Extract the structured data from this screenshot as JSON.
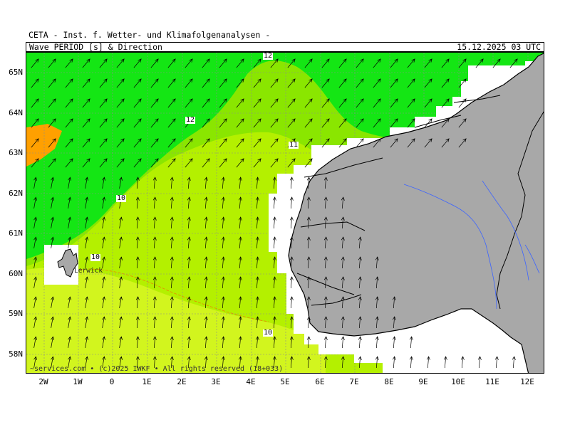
{
  "header": {
    "agency": "CETA - Inst. f. Wetter- und Klimafolgenanalysen -",
    "product": "Wave_PERIOD_[s]_&_Direction",
    "valid_time": "15.12.2025 03 UTC"
  },
  "axes": {
    "lat_labels": [
      "65N",
      "64N",
      "63N",
      "62N",
      "61N",
      "60N",
      "59N",
      "58N"
    ],
    "lon_labels": [
      "2W",
      "1W",
      "0",
      "1E",
      "2E",
      "3E",
      "4E",
      "5E",
      "6E",
      "7E",
      "8E",
      "9E",
      "10E",
      "11E",
      "12E"
    ]
  },
  "contour_labels": [
    "12",
    "12",
    "11",
    "10",
    "10",
    "10"
  ],
  "places": {
    "lerwick": "Lerwick"
  },
  "footer": {
    "copyright": "~services.com • (c)2025 IWKF • All rights reserved (18+033)"
  },
  "colors": {
    "period_12_plus": "#14e614",
    "period_11": "#8ae600",
    "period_10": "#b4f000",
    "period_9": "#d2f51e",
    "period_7": "#ffa000",
    "period_6": "#e6287a",
    "land": "#a8a8a8",
    "coast_mask": "#ffffff",
    "grid": "#8c8c8c"
  },
  "arrow_direction": "north-northeast"
}
